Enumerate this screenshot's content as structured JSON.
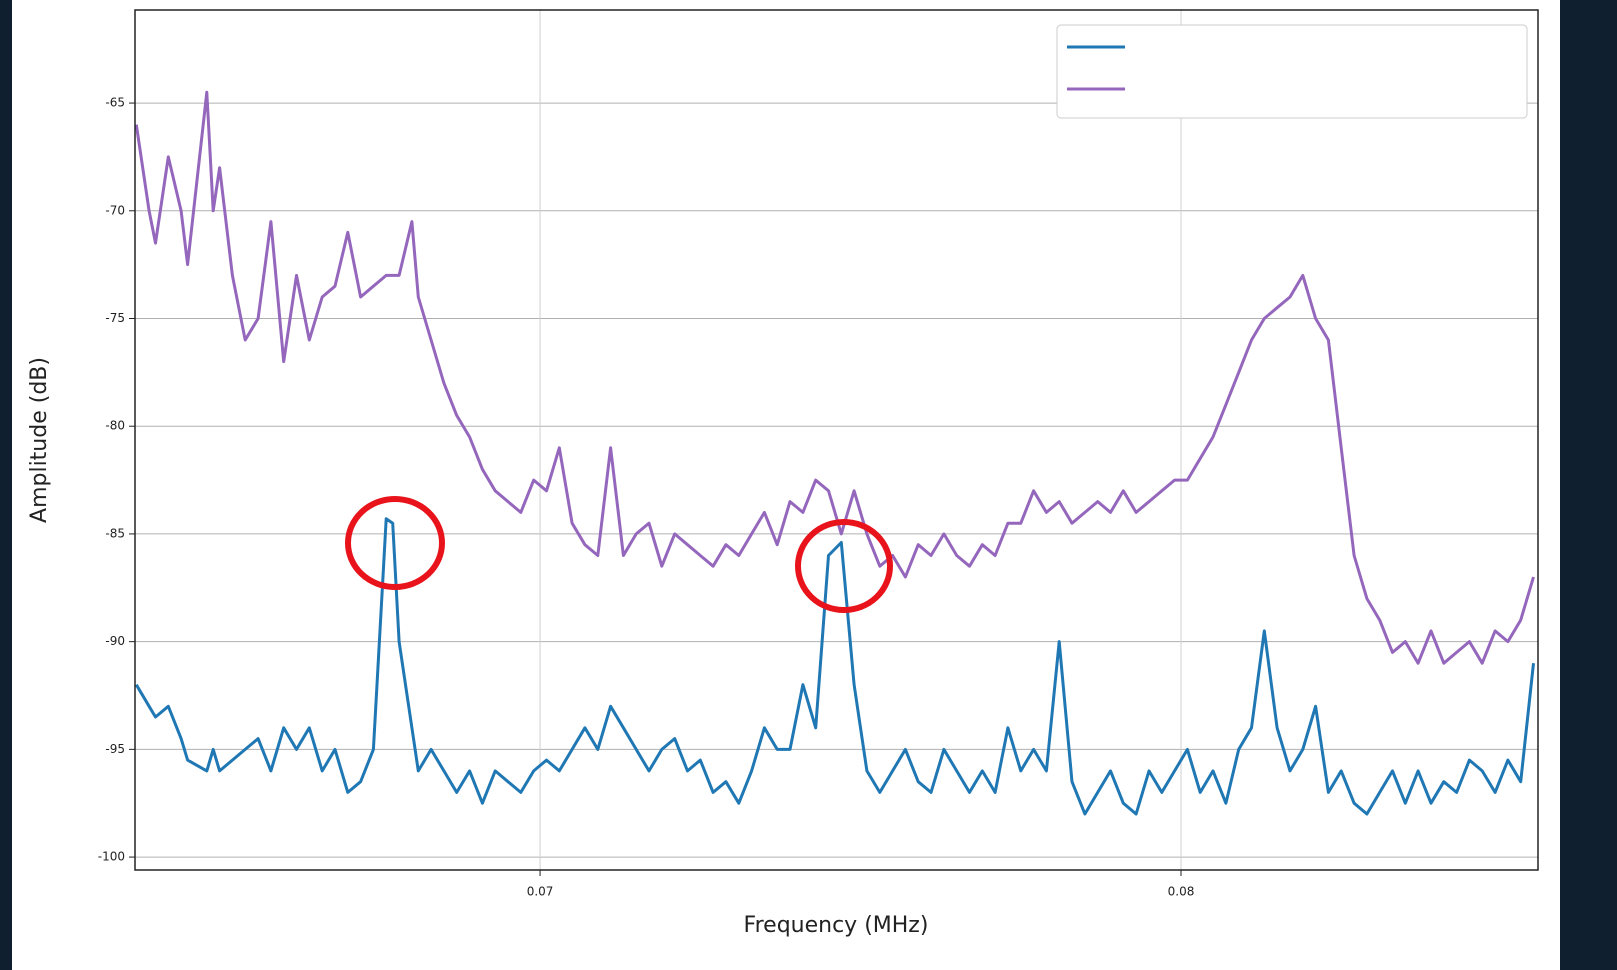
{
  "chart_data": {
    "type": "line",
    "xlabel": "Frequency (MHz)",
    "ylabel": "Amplitude (dB)",
    "x": [
      0.0637,
      0.0639,
      0.064,
      0.0642,
      0.0644,
      0.0645,
      0.0648,
      0.0649,
      0.065,
      0.0652,
      0.0654,
      0.0656,
      0.0658,
      0.066,
      0.0662,
      0.0664,
      0.0666,
      0.0668,
      0.067,
      0.0672,
      0.0674,
      0.0676,
      0.0677,
      0.0678,
      0.068,
      0.0681,
      0.0683,
      0.0685,
      0.0687,
      0.0689,
      0.0691,
      0.0693,
      0.0695,
      0.0697,
      0.0699,
      0.0701,
      0.0703,
      0.0705,
      0.0707,
      0.0709,
      0.0711,
      0.0713,
      0.0715,
      0.0717,
      0.0719,
      0.0721,
      0.0723,
      0.0725,
      0.0727,
      0.0729,
      0.0731,
      0.0733,
      0.0735,
      0.0737,
      0.0739,
      0.0741,
      0.0743,
      0.0745,
      0.0747,
      0.0749,
      0.0751,
      0.0753,
      0.0755,
      0.0757,
      0.0759,
      0.0761,
      0.0763,
      0.0765,
      0.0767,
      0.0769,
      0.0771,
      0.0773,
      0.0775,
      0.0777,
      0.0779,
      0.0781,
      0.0783,
      0.0785,
      0.0787,
      0.0789,
      0.0791,
      0.0793,
      0.0795,
      0.0797,
      0.0799,
      0.0801,
      0.0803,
      0.0805,
      0.0807,
      0.0809,
      0.0811,
      0.0813,
      0.0815,
      0.0817,
      0.0819,
      0.0821,
      0.0823,
      0.0825,
      0.0827,
      0.0829,
      0.0831,
      0.0833,
      0.0835,
      0.0837,
      0.0839,
      0.0841,
      0.0843,
      0.0845,
      0.0847,
      0.0849,
      0.0851,
      0.0853,
      0.0855
    ],
    "series": [
      {
        "color": "#1f77b4",
        "values": [
          -92,
          -93,
          -93.5,
          -93,
          -94.5,
          -95.5,
          -96,
          -95,
          -96,
          -95.5,
          -95,
          -94.5,
          -96,
          -94,
          -95,
          -94,
          -96,
          -95,
          -97,
          -96.5,
          -95,
          -84.3,
          -84.5,
          -90,
          -94,
          -96,
          -95,
          -96,
          -97,
          -96,
          -97.5,
          -96,
          -96.5,
          -97,
          -96,
          -95.5,
          -96,
          -95,
          -94,
          -95,
          -93,
          -94,
          -95,
          -96,
          -95,
          -94.5,
          -96,
          -95.5,
          -97,
          -96.5,
          -97.5,
          -96,
          -94,
          -95,
          -95,
          -92,
          -94,
          -86,
          -85.4,
          -92,
          -96,
          -97,
          -96,
          -95,
          -96.5,
          -97,
          -95,
          -96,
          -97,
          -96,
          -97,
          -94,
          -96,
          -95,
          -96,
          -90,
          -96.5,
          -98,
          -97,
          -96,
          -97.5,
          -98,
          -96,
          -97,
          -96,
          -95,
          -97,
          -96,
          -97.5,
          -95,
          -94,
          -89.5,
          -94,
          -96,
          -95,
          -93,
          -97,
          -96,
          -97.5,
          -98,
          -97,
          -96,
          -97.5,
          -96,
          -97.5,
          -96.5,
          -97,
          -95.5,
          -96,
          -97,
          -95.5,
          -96.5,
          -91
        ]
      },
      {
        "color": "#9467bd",
        "values": [
          -66,
          -70,
          -71.5,
          -67.5,
          -70,
          -72.5,
          -64.5,
          -70,
          -68,
          -73,
          -76,
          -75,
          -70.5,
          -77,
          -73,
          -76,
          -74,
          -73.5,
          -71,
          -74,
          -73.5,
          -73,
          -73,
          -73,
          -70.5,
          -74,
          -76,
          -78,
          -79.5,
          -80.5,
          -82,
          -83,
          -83.5,
          -84,
          -82.5,
          -83,
          -81,
          -84.5,
          -85.5,
          -86,
          -81,
          -86,
          -85,
          -84.5,
          -86.5,
          -85,
          -85.5,
          -86,
          -86.5,
          -85.5,
          -86,
          -85,
          -84,
          -85.5,
          -83.5,
          -84,
          -82.5,
          -83,
          -85,
          -83,
          -85,
          -86.5,
          -86,
          -87,
          -85.5,
          -86,
          -85,
          -86,
          -86.5,
          -85.5,
          -86,
          -84.5,
          -84.5,
          -83,
          -84,
          -83.5,
          -84.5,
          -84,
          -83.5,
          -84,
          -83,
          -84,
          -83.5,
          -83,
          -82.5,
          -82.5,
          -81.5,
          -80.5,
          -79,
          -77.5,
          -76,
          -75,
          -74.5,
          -74,
          -73,
          -75,
          -76,
          -81,
          -86,
          -88,
          -89,
          -90.5,
          -90,
          -91,
          -89.5,
          -91,
          -90.5,
          -90,
          -91,
          -89.5,
          -90,
          -89,
          -87
        ]
      }
    ],
    "xlim": [
      0.06368,
      0.08557
    ],
    "xticks": [
      0.07,
      0.08
    ],
    "ylim": [
      -100.6,
      -60.68
    ],
    "yticks": [
      -100,
      -95,
      -90,
      -85,
      -80,
      -75,
      -70,
      -65
    ],
    "grid": true,
    "legend": "upper right"
  }
}
